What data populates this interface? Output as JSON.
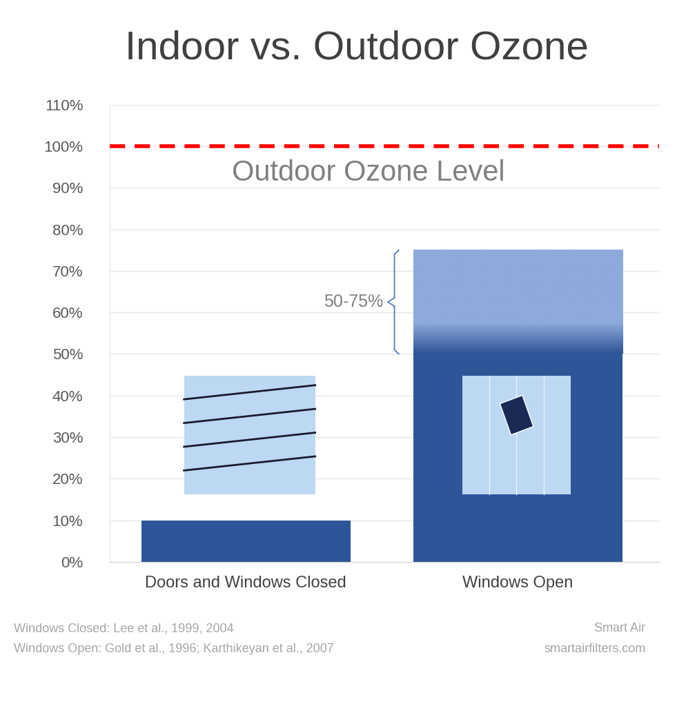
{
  "chart_data": {
    "type": "bar",
    "title": "Indoor vs. Outdoor Ozone",
    "categories": [
      "Doors and Windows Closed",
      "Windows Open"
    ],
    "values": [
      10,
      75
    ],
    "color": "#2e5597",
    "ylim": [
      0,
      110
    ],
    "yticks": [
      {
        "value": 0,
        "label": "0%"
      },
      {
        "value": 10,
        "label": "10%"
      },
      {
        "value": 20,
        "label": "20%"
      },
      {
        "value": 30,
        "label": "30%"
      },
      {
        "value": 40,
        "label": "40%"
      },
      {
        "value": 50,
        "label": "50%"
      },
      {
        "value": 60,
        "label": "60%"
      },
      {
        "value": 70,
        "label": "70%"
      },
      {
        "value": 80,
        "label": "80%"
      },
      {
        "value": 90,
        "label": "90%"
      },
      {
        "value": 100,
        "label": "100%"
      },
      {
        "value": 110,
        "label": "110%"
      }
    ],
    "grid": true,
    "reference_line": {
      "value": 100,
      "label": "Outdoor Ozone Level"
    },
    "range": {
      "category": "Windows Open",
      "low": 50,
      "high": 75,
      "label": "50-75%"
    },
    "notes": [
      "Windows Closed: Lee et al., 1999, 2004",
      "Windows Open: Gold et al., 1996; Karthikeyan et al., 2007"
    ],
    "credit": [
      "Smart Air",
      "smartairfilters.com"
    ]
  }
}
